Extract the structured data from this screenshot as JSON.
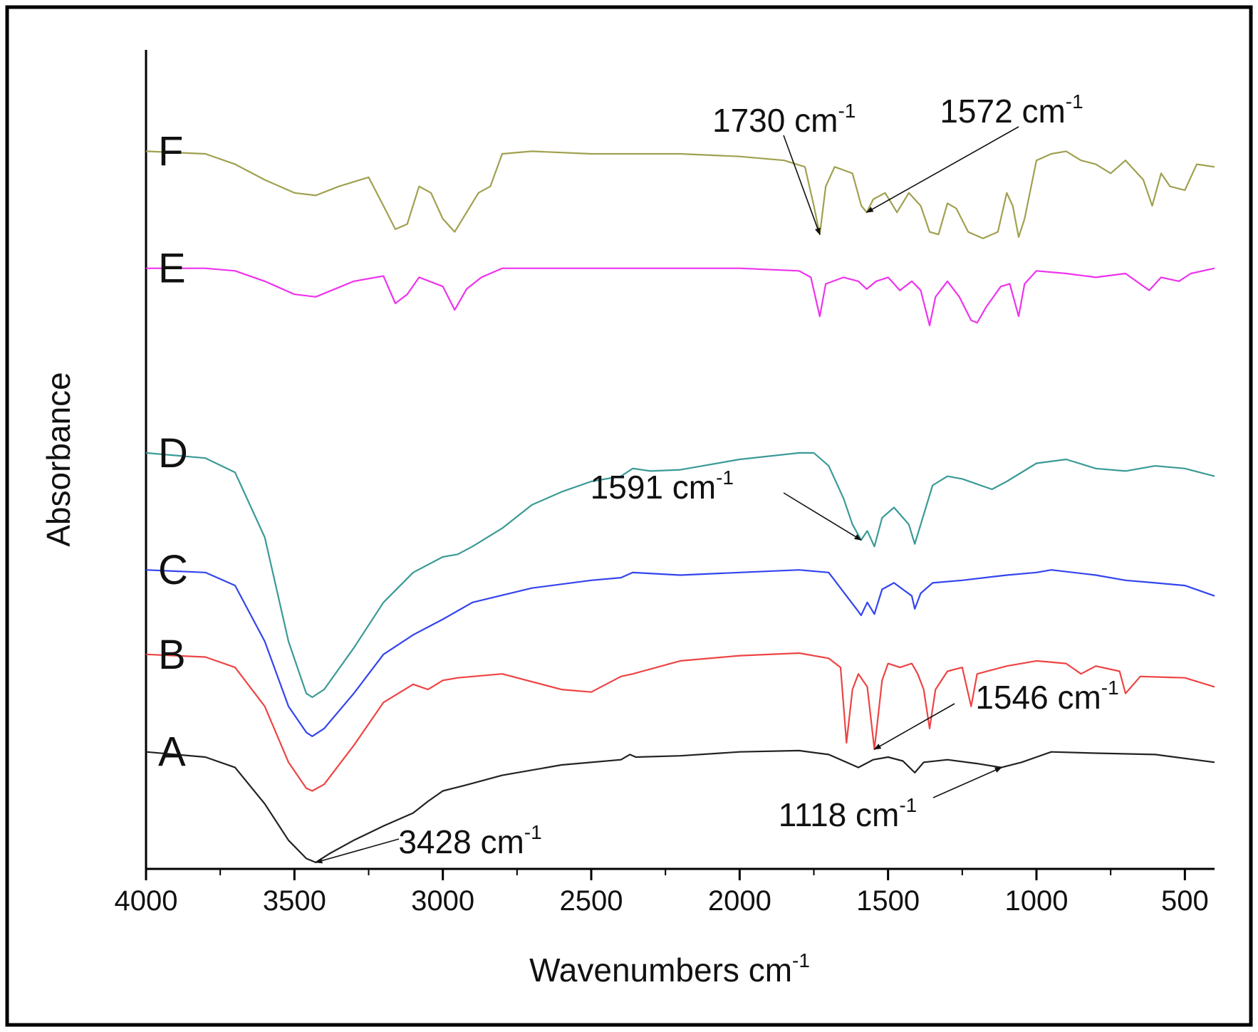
{
  "chart_data": {
    "type": "line",
    "title": "",
    "xlabel": "Wavenumbers cm",
    "xlabel_superscript": "-1",
    "ylabel": "Absorbance",
    "xlim": [
      4000,
      400
    ],
    "x_reversed": true,
    "y_ticks_shown": false,
    "grid": false,
    "x_ticks": [
      4000,
      3500,
      3000,
      2500,
      2000,
      1500,
      1000,
      500
    ],
    "x_tick_labels": [
      "4000",
      "3500",
      "3000",
      "2500",
      "2000",
      "1500",
      "1000",
      "500"
    ],
    "ylim": [
      0,
      6.3
    ],
    "series": [
      {
        "name": "A",
        "color": "#222222",
        "points": [
          [
            4000,
            0.9
          ],
          [
            3800,
            0.86
          ],
          [
            3700,
            0.78
          ],
          [
            3600,
            0.5
          ],
          [
            3520,
            0.22
          ],
          [
            3460,
            0.08
          ],
          [
            3428,
            0.05
          ],
          [
            3380,
            0.12
          ],
          [
            3300,
            0.22
          ],
          [
            3200,
            0.33
          ],
          [
            3100,
            0.43
          ],
          [
            3050,
            0.52
          ],
          [
            3000,
            0.6
          ],
          [
            2930,
            0.64
          ],
          [
            2800,
            0.72
          ],
          [
            2600,
            0.8
          ],
          [
            2400,
            0.84
          ],
          [
            2370,
            0.88
          ],
          [
            2350,
            0.86
          ],
          [
            2200,
            0.87
          ],
          [
            2000,
            0.9
          ],
          [
            1800,
            0.91
          ],
          [
            1700,
            0.88
          ],
          [
            1640,
            0.82
          ],
          [
            1600,
            0.78
          ],
          [
            1550,
            0.84
          ],
          [
            1500,
            0.86
          ],
          [
            1450,
            0.83
          ],
          [
            1410,
            0.74
          ],
          [
            1380,
            0.82
          ],
          [
            1300,
            0.84
          ],
          [
            1200,
            0.81
          ],
          [
            1118,
            0.78
          ],
          [
            1050,
            0.82
          ],
          [
            1000,
            0.86
          ],
          [
            950,
            0.9
          ],
          [
            800,
            0.89
          ],
          [
            600,
            0.88
          ],
          [
            400,
            0.82
          ]
        ]
      },
      {
        "name": "B",
        "color": "#ee4444",
        "points": [
          [
            4000,
            1.65
          ],
          [
            3800,
            1.63
          ],
          [
            3700,
            1.55
          ],
          [
            3600,
            1.25
          ],
          [
            3520,
            0.82
          ],
          [
            3460,
            0.62
          ],
          [
            3440,
            0.6
          ],
          [
            3400,
            0.65
          ],
          [
            3300,
            0.95
          ],
          [
            3200,
            1.28
          ],
          [
            3100,
            1.42
          ],
          [
            3050,
            1.38
          ],
          [
            3000,
            1.45
          ],
          [
            2950,
            1.47
          ],
          [
            2800,
            1.5
          ],
          [
            2600,
            1.38
          ],
          [
            2500,
            1.36
          ],
          [
            2400,
            1.48
          ],
          [
            2360,
            1.5
          ],
          [
            2200,
            1.6
          ],
          [
            2000,
            1.64
          ],
          [
            1800,
            1.66
          ],
          [
            1700,
            1.62
          ],
          [
            1660,
            1.55
          ],
          [
            1640,
            0.97
          ],
          [
            1620,
            1.38
          ],
          [
            1600,
            1.5
          ],
          [
            1570,
            1.4
          ],
          [
            1546,
            0.92
          ],
          [
            1520,
            1.45
          ],
          [
            1500,
            1.58
          ],
          [
            1460,
            1.55
          ],
          [
            1420,
            1.58
          ],
          [
            1400,
            1.5
          ],
          [
            1380,
            1.38
          ],
          [
            1360,
            1.08
          ],
          [
            1340,
            1.38
          ],
          [
            1300,
            1.52
          ],
          [
            1250,
            1.55
          ],
          [
            1220,
            1.25
          ],
          [
            1200,
            1.5
          ],
          [
            1100,
            1.56
          ],
          [
            1000,
            1.6
          ],
          [
            900,
            1.58
          ],
          [
            850,
            1.5
          ],
          [
            800,
            1.56
          ],
          [
            720,
            1.52
          ],
          [
            700,
            1.35
          ],
          [
            650,
            1.48
          ],
          [
            500,
            1.47
          ],
          [
            400,
            1.4
          ]
        ]
      },
      {
        "name": "C",
        "color": "#3344ee",
        "points": [
          [
            4000,
            2.3
          ],
          [
            3800,
            2.28
          ],
          [
            3700,
            2.18
          ],
          [
            3600,
            1.75
          ],
          [
            3520,
            1.25
          ],
          [
            3460,
            1.05
          ],
          [
            3440,
            1.02
          ],
          [
            3400,
            1.08
          ],
          [
            3300,
            1.35
          ],
          [
            3200,
            1.65
          ],
          [
            3100,
            1.8
          ],
          [
            3000,
            1.92
          ],
          [
            2900,
            2.05
          ],
          [
            2700,
            2.16
          ],
          [
            2500,
            2.22
          ],
          [
            2400,
            2.24
          ],
          [
            2360,
            2.28
          ],
          [
            2200,
            2.26
          ],
          [
            2000,
            2.28
          ],
          [
            1800,
            2.3
          ],
          [
            1700,
            2.28
          ],
          [
            1640,
            2.1
          ],
          [
            1600,
            1.98
          ],
          [
            1591,
            1.95
          ],
          [
            1570,
            2.05
          ],
          [
            1546,
            1.96
          ],
          [
            1520,
            2.15
          ],
          [
            1480,
            2.2
          ],
          [
            1420,
            2.1
          ],
          [
            1410,
            2.0
          ],
          [
            1390,
            2.12
          ],
          [
            1350,
            2.2
          ],
          [
            1250,
            2.22
          ],
          [
            1100,
            2.26
          ],
          [
            1000,
            2.28
          ],
          [
            950,
            2.3
          ],
          [
            800,
            2.26
          ],
          [
            700,
            2.22
          ],
          [
            600,
            2.2
          ],
          [
            500,
            2.18
          ],
          [
            400,
            2.1
          ]
        ]
      },
      {
        "name": "D",
        "color": "#3a9a96",
        "points": [
          [
            4000,
            3.2
          ],
          [
            3800,
            3.16
          ],
          [
            3700,
            3.05
          ],
          [
            3600,
            2.55
          ],
          [
            3520,
            1.75
          ],
          [
            3460,
            1.35
          ],
          [
            3440,
            1.32
          ],
          [
            3400,
            1.38
          ],
          [
            3300,
            1.7
          ],
          [
            3200,
            2.05
          ],
          [
            3100,
            2.28
          ],
          [
            3000,
            2.4
          ],
          [
            2950,
            2.42
          ],
          [
            2900,
            2.48
          ],
          [
            2800,
            2.62
          ],
          [
            2700,
            2.8
          ],
          [
            2600,
            2.9
          ],
          [
            2500,
            2.98
          ],
          [
            2400,
            3.02
          ],
          [
            2360,
            3.08
          ],
          [
            2300,
            3.06
          ],
          [
            2200,
            3.07
          ],
          [
            2000,
            3.15
          ],
          [
            1800,
            3.2
          ],
          [
            1750,
            3.2
          ],
          [
            1700,
            3.1
          ],
          [
            1650,
            2.85
          ],
          [
            1620,
            2.65
          ],
          [
            1591,
            2.53
          ],
          [
            1570,
            2.6
          ],
          [
            1546,
            2.48
          ],
          [
            1520,
            2.7
          ],
          [
            1480,
            2.78
          ],
          [
            1430,
            2.65
          ],
          [
            1410,
            2.5
          ],
          [
            1390,
            2.65
          ],
          [
            1350,
            2.95
          ],
          [
            1300,
            3.02
          ],
          [
            1250,
            3.0
          ],
          [
            1150,
            2.92
          ],
          [
            1100,
            2.98
          ],
          [
            1000,
            3.12
          ],
          [
            900,
            3.15
          ],
          [
            800,
            3.08
          ],
          [
            700,
            3.06
          ],
          [
            600,
            3.1
          ],
          [
            500,
            3.08
          ],
          [
            400,
            3.02
          ]
        ]
      },
      {
        "name": "E",
        "color": "#ee33ee",
        "points": [
          [
            4000,
            4.62
          ],
          [
            3800,
            4.62
          ],
          [
            3700,
            4.6
          ],
          [
            3600,
            4.52
          ],
          [
            3500,
            4.42
          ],
          [
            3428,
            4.4
          ],
          [
            3300,
            4.52
          ],
          [
            3200,
            4.56
          ],
          [
            3160,
            4.35
          ],
          [
            3120,
            4.42
          ],
          [
            3080,
            4.55
          ],
          [
            3000,
            4.48
          ],
          [
            2960,
            4.3
          ],
          [
            2920,
            4.46
          ],
          [
            2870,
            4.55
          ],
          [
            2800,
            4.62
          ],
          [
            2600,
            4.62
          ],
          [
            2400,
            4.62
          ],
          [
            2200,
            4.62
          ],
          [
            2000,
            4.62
          ],
          [
            1800,
            4.6
          ],
          [
            1760,
            4.55
          ],
          [
            1730,
            4.25
          ],
          [
            1710,
            4.5
          ],
          [
            1650,
            4.55
          ],
          [
            1600,
            4.52
          ],
          [
            1572,
            4.46
          ],
          [
            1540,
            4.52
          ],
          [
            1500,
            4.55
          ],
          [
            1460,
            4.45
          ],
          [
            1420,
            4.52
          ],
          [
            1390,
            4.45
          ],
          [
            1360,
            4.18
          ],
          [
            1340,
            4.4
          ],
          [
            1300,
            4.52
          ],
          [
            1260,
            4.4
          ],
          [
            1220,
            4.22
          ],
          [
            1200,
            4.2
          ],
          [
            1170,
            4.32
          ],
          [
            1120,
            4.48
          ],
          [
            1090,
            4.5
          ],
          [
            1060,
            4.25
          ],
          [
            1040,
            4.5
          ],
          [
            1000,
            4.6
          ],
          [
            900,
            4.58
          ],
          [
            800,
            4.55
          ],
          [
            700,
            4.58
          ],
          [
            620,
            4.45
          ],
          [
            580,
            4.55
          ],
          [
            520,
            4.52
          ],
          [
            480,
            4.58
          ],
          [
            400,
            4.62
          ]
        ]
      },
      {
        "name": "F",
        "color": "#a0a050",
        "points": [
          [
            4000,
            5.52
          ],
          [
            3800,
            5.5
          ],
          [
            3700,
            5.42
          ],
          [
            3600,
            5.3
          ],
          [
            3500,
            5.2
          ],
          [
            3428,
            5.18
          ],
          [
            3350,
            5.25
          ],
          [
            3250,
            5.32
          ],
          [
            3200,
            5.1
          ],
          [
            3160,
            4.92
          ],
          [
            3120,
            4.96
          ],
          [
            3080,
            5.25
          ],
          [
            3040,
            5.2
          ],
          [
            3000,
            5.0
          ],
          [
            2960,
            4.9
          ],
          [
            2920,
            5.05
          ],
          [
            2880,
            5.2
          ],
          [
            2840,
            5.25
          ],
          [
            2800,
            5.5
          ],
          [
            2700,
            5.52
          ],
          [
            2500,
            5.5
          ],
          [
            2360,
            5.5
          ],
          [
            2200,
            5.5
          ],
          [
            2000,
            5.48
          ],
          [
            1850,
            5.45
          ],
          [
            1780,
            5.4
          ],
          [
            1750,
            5.1
          ],
          [
            1730,
            4.88
          ],
          [
            1710,
            5.25
          ],
          [
            1680,
            5.4
          ],
          [
            1620,
            5.35
          ],
          [
            1590,
            5.1
          ],
          [
            1572,
            5.05
          ],
          [
            1550,
            5.15
          ],
          [
            1510,
            5.2
          ],
          [
            1470,
            5.05
          ],
          [
            1430,
            5.2
          ],
          [
            1390,
            5.1
          ],
          [
            1360,
            4.9
          ],
          [
            1330,
            4.88
          ],
          [
            1300,
            5.12
          ],
          [
            1270,
            5.08
          ],
          [
            1230,
            4.9
          ],
          [
            1180,
            4.85
          ],
          [
            1130,
            4.9
          ],
          [
            1100,
            5.2
          ],
          [
            1080,
            5.1
          ],
          [
            1060,
            4.86
          ],
          [
            1040,
            5.0
          ],
          [
            1000,
            5.45
          ],
          [
            950,
            5.5
          ],
          [
            900,
            5.52
          ],
          [
            850,
            5.45
          ],
          [
            800,
            5.42
          ],
          [
            750,
            5.35
          ],
          [
            700,
            5.45
          ],
          [
            640,
            5.3
          ],
          [
            610,
            5.1
          ],
          [
            580,
            5.35
          ],
          [
            550,
            5.25
          ],
          [
            500,
            5.22
          ],
          [
            460,
            5.42
          ],
          [
            400,
            5.4
          ]
        ]
      }
    ],
    "annotations": [
      {
        "text": "1730 cm",
        "sup": "-1",
        "series": "F",
        "x": 1730
      },
      {
        "text": "1572 cm",
        "sup": "-1",
        "series": "F",
        "x": 1572
      },
      {
        "text": "1591 cm",
        "sup": "-1",
        "series": "D",
        "x": 1591
      },
      {
        "text": "1546 cm",
        "sup": "-1",
        "series": "B",
        "x": 1546
      },
      {
        "text": "1118 cm",
        "sup": "-1",
        "series": "A",
        "x": 1118
      },
      {
        "text": "3428 cm",
        "sup": "-1",
        "series": "A",
        "x": 3428
      }
    ]
  }
}
